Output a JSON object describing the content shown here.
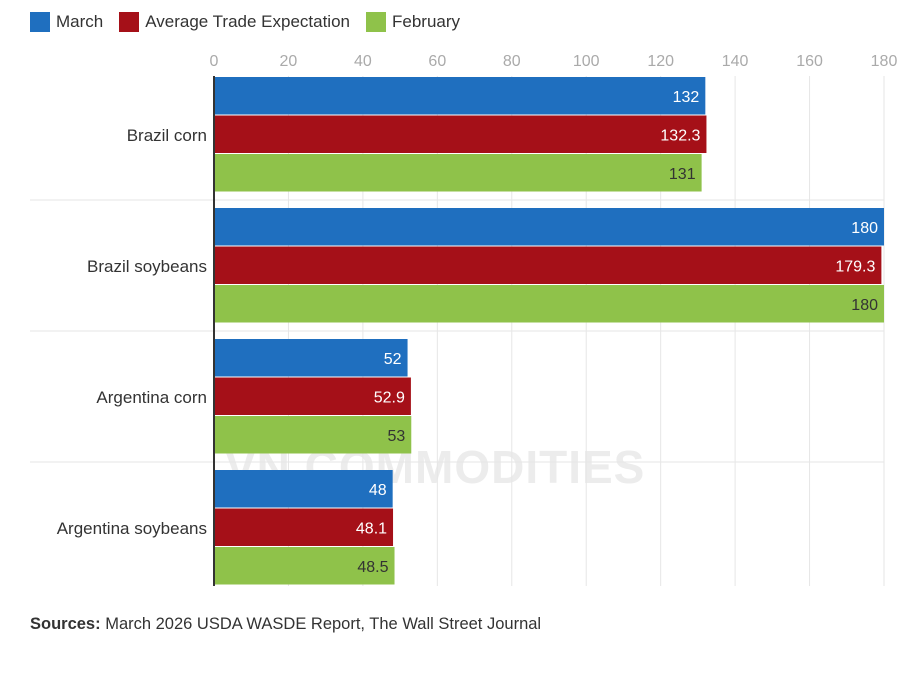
{
  "chart_data": {
    "type": "bar",
    "orientation": "horizontal",
    "categories": [
      "Brazil corn",
      "Brazil soybeans",
      "Argentina corn",
      "Argentina soybeans"
    ],
    "series": [
      {
        "name": "March",
        "color": "#1f6fbf",
        "values": [
          132,
          180,
          52,
          48
        ],
        "labels": [
          "132",
          "180",
          "52",
          "48"
        ]
      },
      {
        "name": "Average Trade Expectation",
        "color": "#a51018",
        "values": [
          132.3,
          179.3,
          52.9,
          48.1
        ],
        "labels": [
          "132.3",
          "179.3",
          "52.9",
          "48.1"
        ]
      },
      {
        "name": "February",
        "color": "#8fc24a",
        "values": [
          131,
          180,
          53,
          48.5
        ],
        "labels": [
          "131",
          "180",
          "53",
          "48.5"
        ]
      }
    ],
    "xlim": [
      0,
      180
    ],
    "ticks": [
      0,
      20,
      40,
      60,
      80,
      100,
      120,
      140,
      160,
      180
    ],
    "legend_position": "top-left",
    "grid": true
  },
  "sources": {
    "label": "Sources:",
    "text": " March 2026 USDA WASDE Report, The Wall Street Journal"
  },
  "watermark": {
    "text": "VN COMMODITIES"
  }
}
